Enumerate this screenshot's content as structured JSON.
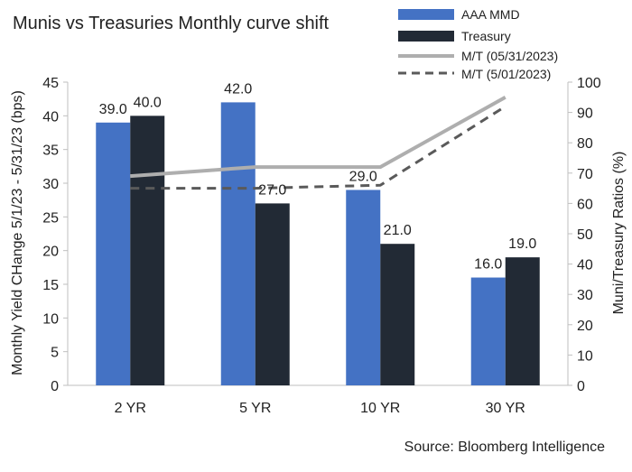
{
  "chart_data": {
    "type": "bar",
    "title": "Munis vs Treasuries Monthly curve shift",
    "source": "Source: Bloomberg Intelligence",
    "categories": [
      "2 YR",
      "5 YR",
      "10 YR",
      "30 YR"
    ],
    "series": [
      {
        "name": "AAA MMD",
        "kind": "bar",
        "axis": "left",
        "color": "#4472C4",
        "values": [
          39.0,
          42.0,
          29.0,
          16.0
        ]
      },
      {
        "name": "Treasury",
        "kind": "bar",
        "axis": "left",
        "color": "#222A35",
        "values": [
          40.0,
          27.0,
          21.0,
          19.0
        ]
      },
      {
        "name": "M/T (05/31/2023)",
        "kind": "line",
        "style": "solid",
        "axis": "right",
        "color": "#AEAEAE",
        "values": [
          69,
          72,
          72,
          95
        ]
      },
      {
        "name": "M/T (5/01/2023)",
        "kind": "line",
        "style": "dashed",
        "axis": "right",
        "color": "#5A5A5A",
        "values": [
          65,
          65,
          66,
          92
        ]
      }
    ],
    "data_labels": {
      "AAA MMD": [
        "39.0",
        "42.0",
        "29.0",
        "16.0"
      ],
      "Treasury": [
        "40.0",
        "27.0",
        "21.0",
        "19.0"
      ]
    },
    "ylabel_left": "Monthly Yield CHange 5/1/23 - 5/31/23  (bps)",
    "ylabel_right": "Muni/Treasury Ratios (%)",
    "ylim_left": [
      0,
      45
    ],
    "yticks_left": [
      "0",
      "5",
      "10",
      "15",
      "20",
      "25",
      "30",
      "35",
      "40",
      "45"
    ],
    "ylim_right": [
      0,
      100
    ],
    "yticks_right": [
      "0",
      "10",
      "20",
      "30",
      "40",
      "50",
      "60",
      "70",
      "80",
      "90",
      "100"
    ],
    "grid": false,
    "legend_position": "top-right"
  }
}
